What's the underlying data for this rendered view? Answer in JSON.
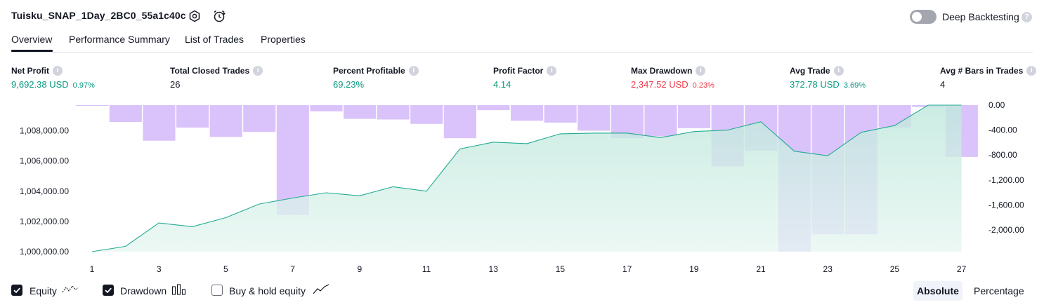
{
  "header": {
    "title": "Tuisku_SNAP_1Day_2BC0_55a1c40c",
    "deep_backtesting_label": "Deep Backtesting",
    "deep_backtesting_enabled": false
  },
  "tabs": [
    "Overview",
    "Performance Summary",
    "List of Trades",
    "Properties"
  ],
  "active_tab": "Overview",
  "metrics": [
    {
      "label": "Net Profit",
      "value": "9,692.38 USD",
      "pct": "0.97%",
      "tone": "green"
    },
    {
      "label": "Total Closed Trades",
      "value": "26",
      "pct": "",
      "tone": "dark"
    },
    {
      "label": "Percent Profitable",
      "value": "69.23%",
      "pct": "",
      "tone": "green"
    },
    {
      "label": "Profit Factor",
      "value": "4.14",
      "pct": "",
      "tone": "green"
    },
    {
      "label": "Max Drawdown",
      "value": "2,347.52 USD",
      "pct": "0.23%",
      "tone": "red"
    },
    {
      "label": "Avg Trade",
      "value": "372.78 USD",
      "pct": "3.69%",
      "tone": "green"
    },
    {
      "label": "Avg # Bars in Trades",
      "value": "4",
      "pct": "",
      "tone": "dark"
    }
  ],
  "legend": {
    "equity_label": "Equity",
    "equity_checked": true,
    "drawdown_label": "Drawdown",
    "drawdown_checked": true,
    "buyhold_label": "Buy & hold equity",
    "buyhold_checked": false
  },
  "mode": {
    "absolute_label": "Absolute",
    "percentage_label": "Percentage",
    "selected": "Absolute"
  },
  "colors": {
    "equity_line": "#22ab94",
    "equity_fill": "#c4ebe0",
    "drawdown_bar": "#d6bcfa",
    "green": "#089981",
    "red": "#f23645"
  },
  "chart_data": {
    "type": "area",
    "x": [
      1,
      2,
      3,
      4,
      5,
      6,
      7,
      8,
      9,
      10,
      11,
      12,
      13,
      14,
      15,
      16,
      17,
      18,
      19,
      20,
      21,
      22,
      23,
      24,
      25,
      26,
      27
    ],
    "x_ticks": [
      "1",
      "3",
      "5",
      "7",
      "9",
      "11",
      "13",
      "15",
      "17",
      "19",
      "21",
      "23",
      "25",
      "27"
    ],
    "series": [
      {
        "name": "Equity",
        "axis": "left",
        "values": [
          1000000,
          1000350,
          1001900,
          1001650,
          1002250,
          1003150,
          1003550,
          1003900,
          1003700,
          1004300,
          1004000,
          1006800,
          1007250,
          1007150,
          1007800,
          1007850,
          1007850,
          1007550,
          1007950,
          1008050,
          1008600,
          1006650,
          1006350,
          1007900,
          1008350,
          1009700,
          1009700
        ]
      },
      {
        "name": "Drawdown",
        "axis": "right",
        "type": "bar",
        "values": [
          -10,
          -270,
          -570,
          -360,
          -510,
          -430,
          -1760,
          -100,
          -220,
          -230,
          -300,
          -530,
          -80,
          -250,
          -280,
          -410,
          -530,
          -500,
          -370,
          -980,
          -730,
          -2347.52,
          -2070,
          -2070,
          -360,
          -30,
          -830
        ]
      }
    ],
    "left_axis_ticks": [
      "1,000,000.00",
      "1,002,000.00",
      "1,004,000.00",
      "1,006,000.00",
      "1,008,000.00"
    ],
    "right_axis_ticks": [
      "0.00",
      "-400.00",
      "-800.00",
      "-1,200.00",
      "-1,600.00",
      "-2,000.00"
    ],
    "left_ylim": [
      1000000,
      1009700
    ],
    "right_ylim": [
      -2347.52,
      0
    ]
  }
}
